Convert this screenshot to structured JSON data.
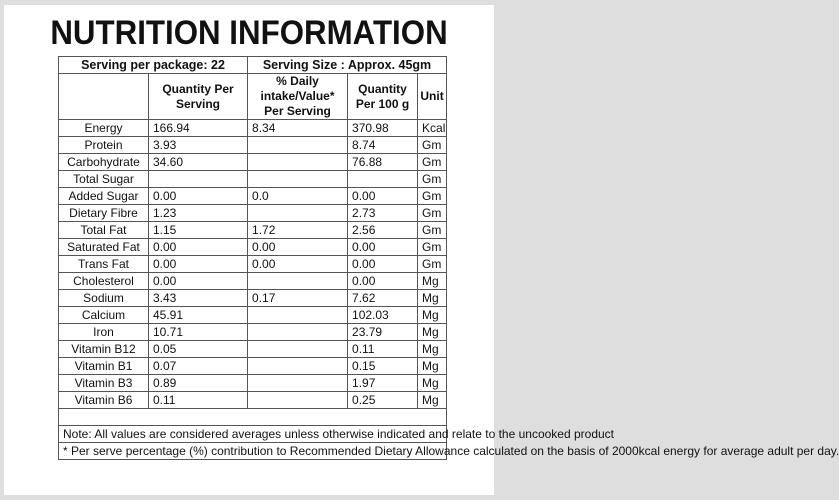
{
  "title": "NUTRITION INFORMATION",
  "serving": {
    "per_package": "Serving per package: 22",
    "size": "Serving Size : Approx. 45gm"
  },
  "headers": {
    "quantity_per_serving": "Quantity Per Serving",
    "daily_intake": "% Daily intake/Value* Per Serving",
    "per_100g": "Quantity Per 100 g",
    "unit": "Unit"
  },
  "rows": [
    {
      "name": "Energy",
      "per_serving": "166.94",
      "daily": "8.34",
      "per100": "370.98",
      "unit": "Kcal"
    },
    {
      "name": "Protein",
      "per_serving": "3.93",
      "daily": "",
      "per100": "8.74",
      "unit": "Gm"
    },
    {
      "name": "Carbohydrate",
      "per_serving": "34.60",
      "daily": "",
      "per100": "76.88",
      "unit": "Gm"
    },
    {
      "name": "Total Sugar",
      "per_serving": "",
      "daily": "",
      "per100": "",
      "unit": "Gm"
    },
    {
      "name": "Added Sugar",
      "per_serving": "0.00",
      "daily": "0.0",
      "per100": "0.00",
      "unit": "Gm"
    },
    {
      "name": "Dietary Fibre",
      "per_serving": "1.23",
      "daily": "",
      "per100": "2.73",
      "unit": "Gm"
    },
    {
      "name": "Total Fat",
      "per_serving": "1.15",
      "daily": "1.72",
      "per100": "2.56",
      "unit": "Gm"
    },
    {
      "name": "Saturated Fat",
      "per_serving": "0.00",
      "daily": "0.00",
      "per100": "0.00",
      "unit": "Gm"
    },
    {
      "name": "Trans Fat",
      "per_serving": "0.00",
      "daily": "0.00",
      "per100": "0.00",
      "unit": "Gm"
    },
    {
      "name": "Cholesterol",
      "per_serving": "0.00",
      "daily": "",
      "per100": "0.00",
      "unit": "Mg"
    },
    {
      "name": "Sodium",
      "per_serving": "3.43",
      "daily": "0.17",
      "per100": "7.62",
      "unit": "Mg"
    },
    {
      "name": "Calcium",
      "per_serving": "45.91",
      "daily": "",
      "per100": "102.03",
      "unit": "Mg"
    },
    {
      "name": "Iron",
      "per_serving": "10.71",
      "daily": "",
      "per100": "23.79",
      "unit": "Mg"
    },
    {
      "name": "Vitamin B12",
      "per_serving": "0.05",
      "daily": "",
      "per100": "0.11",
      "unit": "Mg"
    },
    {
      "name": "Vitamin B1",
      "per_serving": "0.07",
      "daily": "",
      "per100": "0.15",
      "unit": "Mg"
    },
    {
      "name": "Vitamin B3",
      "per_serving": "0.89",
      "daily": "",
      "per100": "1.97",
      "unit": "Mg"
    },
    {
      "name": "Vitamin B6",
      "per_serving": "0.11",
      "daily": "",
      "per100": "0.25",
      "unit": "Mg"
    }
  ],
  "note": "Note: All values are considered averages unless otherwise indicated and relate to the uncooked product",
  "footnote": "* Per serve percentage (%) contribution to Recommended Dietary Allowance calculated on the basis of 2000kcal energy for average adult per day."
}
